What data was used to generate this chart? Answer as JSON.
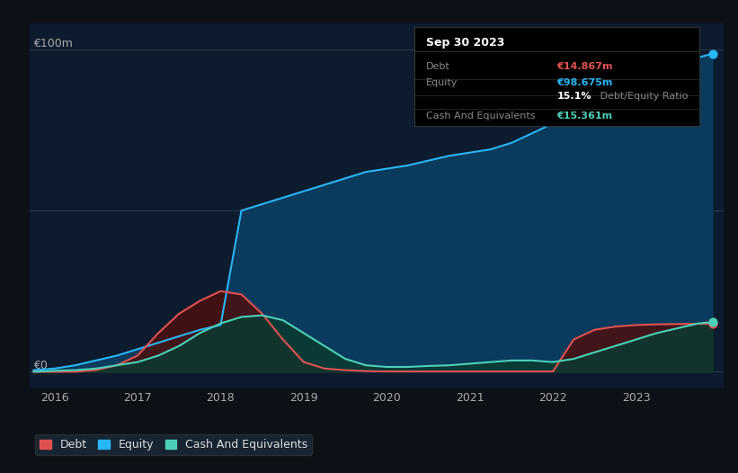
{
  "background_color": "#0d1117",
  "plot_bg_color": "#0d1b2e",
  "info_box": {
    "title": "Sep 30 2023",
    "rows": [
      {
        "label": "Debt",
        "value": "€14.867m",
        "value_color": "#e05252"
      },
      {
        "label": "Equity",
        "value": "€98.675m",
        "value_color": "#29b6f6"
      },
      {
        "label": "",
        "value": "15.1% Debt/Equity Ratio",
        "value_color": "#aaaaaa"
      },
      {
        "label": "Cash And Equivalents",
        "value": "€15.361m",
        "value_color": "#4dd0b8"
      }
    ]
  },
  "ylabel_top": "€100m",
  "ylabel_zero": "€0",
  "xlim": [
    2015.7,
    2024.05
  ],
  "ylim": [
    -5,
    108
  ],
  "xticks": [
    2016,
    2017,
    2018,
    2019,
    2020,
    2021,
    2022,
    2023
  ],
  "grid_color": "#2a3a4a",
  "equity": {
    "color": "#29b6f6",
    "fill_color": "#0a3a5c",
    "label": "Equity",
    "x": [
      2015.75,
      2016.0,
      2016.25,
      2016.5,
      2016.75,
      2017.0,
      2017.25,
      2017.5,
      2017.75,
      2018.0,
      2018.25,
      2018.5,
      2018.75,
      2019.0,
      2019.25,
      2019.5,
      2019.75,
      2020.0,
      2020.25,
      2020.5,
      2020.75,
      2021.0,
      2021.25,
      2021.5,
      2021.75,
      2022.0,
      2022.25,
      2022.5,
      2022.75,
      2023.0,
      2023.25,
      2023.5,
      2023.75,
      2023.92
    ],
    "y": [
      0.5,
      1.0,
      2.0,
      3.5,
      5.0,
      7.0,
      9.0,
      11.0,
      13.0,
      14.5,
      50.0,
      52.0,
      54.0,
      56.0,
      58.0,
      60.0,
      62.0,
      63.0,
      64.0,
      65.5,
      67.0,
      68.0,
      69.0,
      71.0,
      74.0,
      77.0,
      80.0,
      83.0,
      86.0,
      89.0,
      92.0,
      95.0,
      97.5,
      98.675
    ]
  },
  "debt": {
    "color": "#e05252",
    "fill_color": "#4a1010",
    "label": "Debt",
    "x": [
      2015.75,
      2016.0,
      2016.25,
      2016.5,
      2016.75,
      2017.0,
      2017.25,
      2017.5,
      2017.75,
      2018.0,
      2018.25,
      2018.5,
      2018.75,
      2019.0,
      2019.25,
      2019.5,
      2019.75,
      2020.0,
      2020.25,
      2020.5,
      2020.75,
      2021.0,
      2021.25,
      2021.5,
      2021.75,
      2022.0,
      2022.25,
      2022.5,
      2022.75,
      2023.0,
      2023.25,
      2023.5,
      2023.75,
      2023.92
    ],
    "y": [
      0.0,
      0.0,
      0.0,
      0.5,
      2.0,
      5.0,
      12.0,
      18.0,
      22.0,
      25.0,
      24.0,
      18.0,
      10.0,
      3.0,
      1.0,
      0.5,
      0.2,
      0.1,
      0.1,
      0.1,
      0.1,
      0.1,
      0.1,
      0.1,
      0.1,
      0.1,
      10.0,
      13.0,
      14.0,
      14.5,
      14.7,
      14.8,
      14.867,
      14.867
    ]
  },
  "cash": {
    "color": "#4dd0b8",
    "fill_color": "#0a3a30",
    "label": "Cash And Equivalents",
    "x": [
      2015.75,
      2016.0,
      2016.25,
      2016.5,
      2016.75,
      2017.0,
      2017.25,
      2017.5,
      2017.75,
      2018.0,
      2018.25,
      2018.5,
      2018.75,
      2019.0,
      2019.25,
      2019.5,
      2019.75,
      2020.0,
      2020.25,
      2020.5,
      2020.75,
      2021.0,
      2021.25,
      2021.5,
      2021.75,
      2022.0,
      2022.25,
      2022.5,
      2022.75,
      2023.0,
      2023.25,
      2023.5,
      2023.75,
      2023.92
    ],
    "y": [
      0.0,
      0.3,
      0.5,
      1.0,
      2.0,
      3.0,
      5.0,
      8.0,
      12.0,
      15.0,
      17.0,
      17.5,
      16.0,
      12.0,
      8.0,
      4.0,
      2.0,
      1.5,
      1.5,
      1.8,
      2.0,
      2.5,
      3.0,
      3.5,
      3.5,
      3.0,
      4.0,
      6.0,
      8.0,
      10.0,
      12.0,
      13.5,
      15.0,
      15.361
    ]
  },
  "legend": [
    {
      "label": "Debt",
      "color": "#e05252"
    },
    {
      "label": "Equity",
      "color": "#29b6f6"
    },
    {
      "label": "Cash And Equivalents",
      "color": "#4dd0b8"
    }
  ]
}
